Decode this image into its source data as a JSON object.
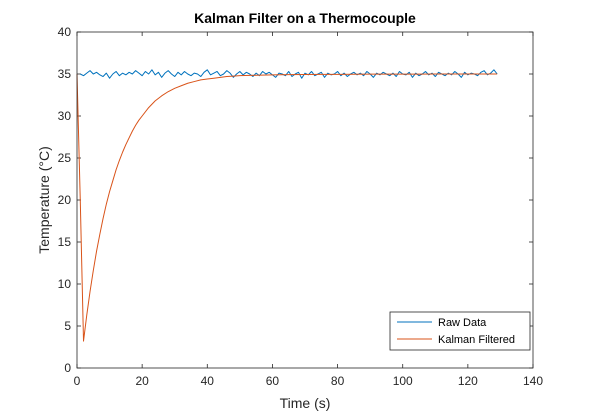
{
  "chart_data": {
    "type": "line",
    "title": "Kalman Filter on a Thermocouple",
    "xlabel": "Time (s)",
    "ylabel": "Temperature (°C)",
    "xlim": [
      0,
      140
    ],
    "ylim": [
      0,
      40
    ],
    "xticks": [
      0,
      20,
      40,
      60,
      80,
      100,
      120,
      140
    ],
    "yticks": [
      0,
      5,
      10,
      15,
      20,
      25,
      30,
      35,
      40
    ],
    "grid": false,
    "box": true,
    "legend_position": "bottom-right",
    "series": [
      {
        "name": "Raw Data",
        "color": "#0072BD",
        "x": [
          1,
          2,
          3,
          4,
          5,
          6,
          7,
          8,
          9,
          10,
          11,
          12,
          13,
          14,
          15,
          16,
          17,
          18,
          19,
          20,
          21,
          22,
          23,
          24,
          25,
          26,
          27,
          28,
          29,
          30,
          31,
          32,
          33,
          34,
          35,
          36,
          37,
          38,
          39,
          40,
          41,
          42,
          43,
          44,
          45,
          46,
          47,
          48,
          49,
          50,
          51,
          52,
          53,
          54,
          55,
          56,
          57,
          58,
          59,
          60,
          61,
          62,
          63,
          64,
          65,
          66,
          67,
          68,
          69,
          70,
          71,
          72,
          73,
          74,
          75,
          76,
          77,
          78,
          79,
          80,
          81,
          82,
          83,
          84,
          85,
          86,
          87,
          88,
          89,
          90,
          91,
          92,
          93,
          94,
          95,
          96,
          97,
          98,
          99,
          100,
          101,
          102,
          103,
          104,
          105,
          106,
          107,
          108,
          109,
          110,
          111,
          112,
          113,
          114,
          115,
          116,
          117,
          118,
          119,
          120,
          121,
          122,
          123,
          124,
          125,
          126,
          127,
          128,
          129
        ],
        "y": [
          35.0,
          34.8,
          35.1,
          35.4,
          35.0,
          35.2,
          34.9,
          34.7,
          35.1,
          34.5,
          35.0,
          35.3,
          34.8,
          35.1,
          34.9,
          35.2,
          35.0,
          35.4,
          35.1,
          34.8,
          35.3,
          35.0,
          35.5,
          34.9,
          35.2,
          34.6,
          35.1,
          35.4,
          35.0,
          34.7,
          35.2,
          34.9,
          35.3,
          35.0,
          34.8,
          35.1,
          35.0,
          34.7,
          35.2,
          35.5,
          34.9,
          35.1,
          35.3,
          34.8,
          35.0,
          35.4,
          35.1,
          34.6,
          35.0,
          35.3,
          34.9,
          35.2,
          35.0,
          34.7,
          35.1,
          34.8,
          35.3,
          35.0,
          35.2,
          34.9,
          34.6,
          35.1,
          35.0,
          34.8,
          35.3,
          34.7,
          35.0,
          35.2,
          34.5,
          35.1,
          34.9,
          35.3,
          34.8,
          35.0,
          35.2,
          34.6,
          35.1,
          34.9,
          35.0,
          35.3,
          34.8,
          35.1,
          34.7,
          35.0,
          35.2,
          34.9,
          35.1,
          34.8,
          35.3,
          35.0,
          34.6,
          35.1,
          34.9,
          35.2,
          35.0,
          34.8,
          35.1,
          34.7,
          35.3,
          35.0,
          34.9,
          35.2,
          34.6,
          35.1,
          34.8,
          35.0,
          35.3,
          34.9,
          35.1,
          34.7,
          35.2,
          35.0,
          34.8,
          35.1,
          34.9,
          35.3,
          35.0,
          34.6,
          35.2,
          34.9,
          35.1,
          35.0,
          34.8,
          35.2,
          35.4,
          34.9,
          35.1,
          35.5,
          35.0
        ]
      },
      {
        "name": "Kalman Filtered",
        "color": "#D95319",
        "x": [
          0,
          1,
          2,
          3,
          4,
          5,
          6,
          7,
          8,
          9,
          10,
          11,
          12,
          13,
          14,
          15,
          16,
          17,
          18,
          19,
          20,
          22,
          24,
          26,
          28,
          30,
          32,
          34,
          36,
          38,
          40,
          42,
          44,
          46,
          48,
          50,
          55,
          60,
          65,
          70,
          75,
          80,
          85,
          90,
          95,
          100,
          105,
          110,
          115,
          120,
          125,
          129
        ],
        "y": [
          35.0,
          20.0,
          3.2,
          6.3,
          9.1,
          11.6,
          13.9,
          15.9,
          17.8,
          19.5,
          21.0,
          22.3,
          23.6,
          24.7,
          25.7,
          26.6,
          27.4,
          28.2,
          28.9,
          29.5,
          30.0,
          31.0,
          31.8,
          32.4,
          32.9,
          33.3,
          33.6,
          33.9,
          34.1,
          34.3,
          34.4,
          34.5,
          34.6,
          34.7,
          34.75,
          34.8,
          34.85,
          34.9,
          34.92,
          34.94,
          34.95,
          34.96,
          34.97,
          34.98,
          34.98,
          34.99,
          34.99,
          35.0,
          35.0,
          35.0,
          35.0,
          35.0
        ]
      }
    ]
  }
}
